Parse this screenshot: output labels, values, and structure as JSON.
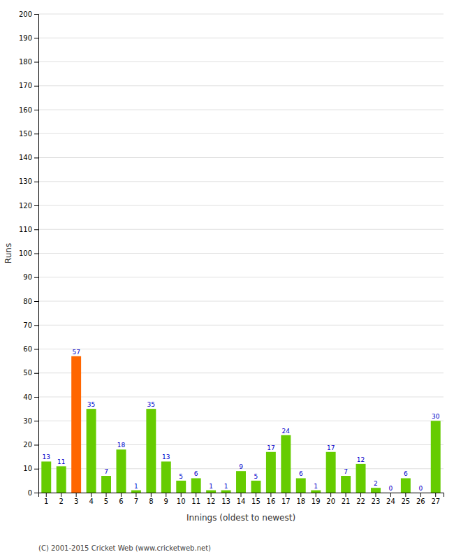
{
  "chart_data": {
    "type": "bar",
    "categories": [
      "1",
      "2",
      "3",
      "4",
      "5",
      "6",
      "7",
      "8",
      "9",
      "10",
      "11",
      "12",
      "13",
      "14",
      "15",
      "16",
      "17",
      "18",
      "19",
      "20",
      "21",
      "22",
      "23",
      "24",
      "25",
      "26",
      "27"
    ],
    "values": [
      13,
      11,
      57,
      35,
      7,
      18,
      1,
      35,
      13,
      5,
      6,
      1,
      1,
      9,
      5,
      17,
      24,
      6,
      1,
      17,
      7,
      12,
      2,
      0,
      6,
      0,
      30
    ],
    "colors": [
      "#66cc00",
      "#66cc00",
      "#ff6600",
      "#66cc00",
      "#66cc00",
      "#66cc00",
      "#66cc00",
      "#66cc00",
      "#66cc00",
      "#66cc00",
      "#66cc00",
      "#66cc00",
      "#66cc00",
      "#66cc00",
      "#66cc00",
      "#66cc00",
      "#66cc00",
      "#66cc00",
      "#66cc00",
      "#66cc00",
      "#66cc00",
      "#66cc00",
      "#66cc00",
      "#66cc00",
      "#66cc00",
      "#66cc00",
      "#66cc00"
    ],
    "xlabel": "Innings (oldest to newest)",
    "ylabel": "Runs",
    "ylim": [
      0,
      200
    ],
    "yticks": [
      0,
      10,
      20,
      30,
      40,
      50,
      60,
      70,
      80,
      90,
      100,
      110,
      120,
      130,
      140,
      150,
      160,
      170,
      180,
      190,
      200
    ],
    "grid": true,
    "data_labels": true,
    "annotations": [
      "(C) 2001-2015 Cricket Web (www.cricketweb.net)"
    ]
  }
}
